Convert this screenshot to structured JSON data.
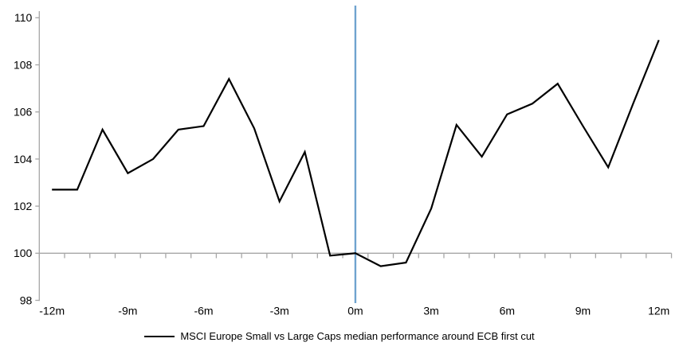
{
  "chart_data": {
    "type": "line",
    "title": "",
    "legend_label": "MSCI Europe Small vs Large Caps median performance around ECB first cut",
    "x_months": [
      -12,
      -11,
      -10,
      -9,
      -8,
      -7,
      -6,
      -5,
      -4,
      -3,
      -2,
      -1,
      0,
      1,
      2,
      3,
      4,
      5,
      6,
      7,
      8,
      9,
      10,
      11,
      12
    ],
    "values": [
      102.7,
      102.7,
      105.25,
      103.4,
      104.0,
      105.25,
      105.4,
      107.4,
      105.3,
      102.2,
      104.3,
      99.9,
      100.0,
      99.45,
      99.6,
      101.9,
      105.45,
      104.1,
      105.9,
      106.35,
      107.2,
      105.4,
      103.65,
      106.4,
      109.05
    ],
    "x_tick_labels": [
      "-12m",
      "-9m",
      "-6m",
      "-3m",
      "0m",
      "3m",
      "6m",
      "9m",
      "12m"
    ],
    "x_label_every_months": 3,
    "y_tick_labels": [
      "110",
      "108",
      "106",
      "104",
      "102",
      "100",
      "98"
    ],
    "y_ticks": [
      110,
      108,
      106,
      104,
      102,
      100,
      98
    ],
    "ylim": [
      98,
      110.3
    ],
    "axis_crosses_at": 100,
    "event_line_x_month": 0,
    "grid": "off",
    "legend_position": "bottom-center",
    "colors": {
      "series_line": "#000000",
      "event_line": "#6FA3CF",
      "axis": "#A6A6A6",
      "text": "#000000",
      "background": "#FFFFFF"
    }
  }
}
